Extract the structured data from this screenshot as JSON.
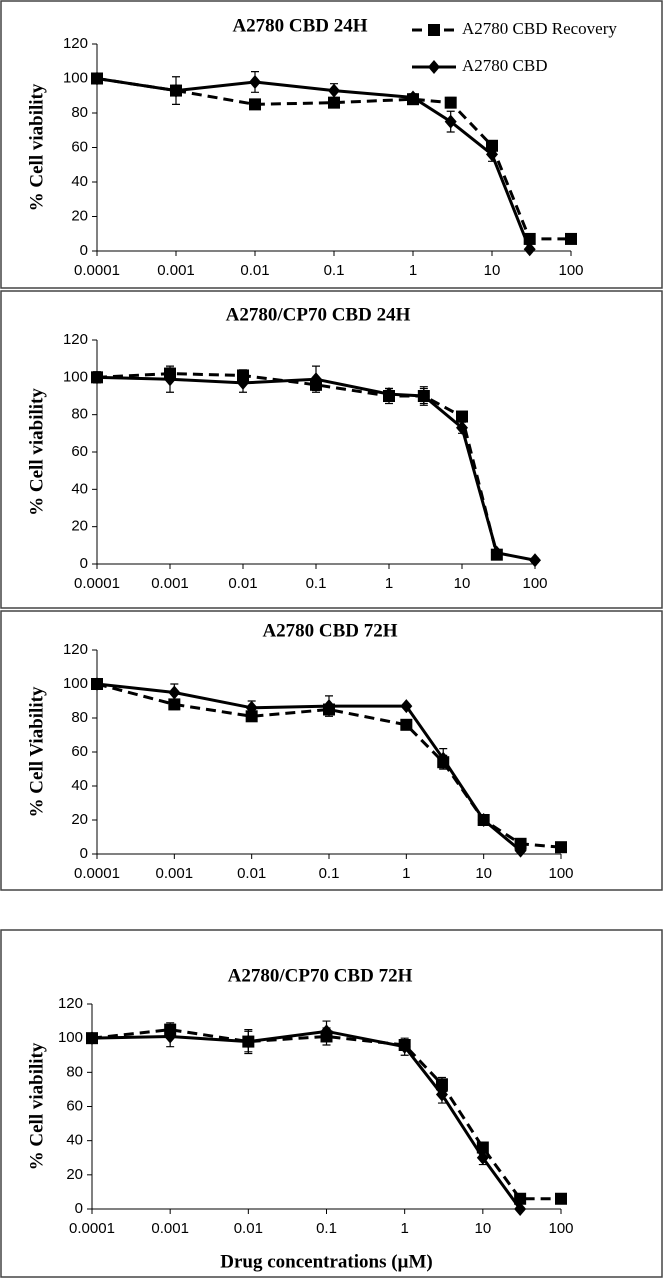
{
  "chart_data": [
    {
      "type": "line",
      "title": "A2780 CBD 24H",
      "y_label": "% Cell viability",
      "xscale": "log",
      "x": [
        0.0001,
        0.001,
        0.01,
        0.1,
        1,
        3,
        10,
        30,
        100
      ],
      "xlim": [
        0.0001,
        100
      ],
      "xticks": [
        0.0001,
        0.001,
        0.01,
        0.1,
        1,
        10,
        100
      ],
      "ylim": [
        0,
        120
      ],
      "yticks": [
        0,
        20,
        40,
        60,
        80,
        100,
        120
      ],
      "legend": "upper right",
      "series": [
        {
          "name": "A2780 CBD Recovery",
          "color": "#000000",
          "style": "dashed",
          "marker": "square",
          "values": [
            100,
            93,
            85,
            86,
            88,
            86,
            61,
            7,
            7
          ],
          "errors": [
            2,
            3,
            2,
            2,
            3,
            3,
            3,
            2,
            2
          ]
        },
        {
          "name": "A2780 CBD",
          "color": "#000000",
          "style": "solid",
          "marker": "diamond",
          "values": [
            100,
            93,
            98,
            93,
            89,
            75,
            56,
            1,
            null
          ],
          "errors": [
            2,
            8,
            6,
            4,
            2,
            6,
            4,
            1,
            null
          ]
        }
      ]
    },
    {
      "type": "line",
      "title": "A2780/CP70 CBD 24H",
      "y_label": "% Cell viability",
      "xscale": "log",
      "x": [
        0.0001,
        0.001,
        0.01,
        0.1,
        1,
        3,
        10,
        30,
        100
      ],
      "xlim": [
        0.0001,
        100
      ],
      "xticks": [
        0.0001,
        0.001,
        0.01,
        0.1,
        1,
        10,
        100
      ],
      "ylim": [
        0,
        120
      ],
      "yticks": [
        0,
        20,
        40,
        60,
        80,
        100,
        120
      ],
      "series": [
        {
          "color": "#000000",
          "style": "dashed",
          "marker": "square",
          "values": [
            100,
            102,
            101,
            96,
            90,
            90,
            79,
            5,
            null
          ],
          "errors": [
            2,
            3,
            3,
            3,
            4,
            4,
            2,
            2,
            null
          ]
        },
        {
          "color": "#000000",
          "style": "solid",
          "marker": "diamond",
          "values": [
            100,
            99,
            97,
            99,
            91,
            90,
            73,
            6,
            2
          ],
          "errors": [
            3,
            7,
            5,
            7,
            3,
            5,
            3,
            1,
            1
          ]
        }
      ]
    },
    {
      "type": "line",
      "title": "A2780 CBD 72H",
      "y_label": "% Cell Viability",
      "xscale": "log",
      "x": [
        0.0001,
        0.001,
        0.01,
        0.1,
        1,
        3,
        10,
        30,
        100
      ],
      "xlim": [
        0.0001,
        100
      ],
      "xticks": [
        0.0001,
        0.001,
        0.01,
        0.1,
        1,
        10,
        100
      ],
      "ylim": [
        0,
        120
      ],
      "yticks": [
        0,
        20,
        40,
        60,
        80,
        100,
        120
      ],
      "series": [
        {
          "color": "#000000",
          "style": "dashed",
          "marker": "square",
          "values": [
            100,
            88,
            81,
            85,
            76,
            54,
            20,
            6,
            4
          ],
          "errors": [
            2,
            3,
            3,
            3,
            3,
            4,
            2,
            1,
            1
          ]
        },
        {
          "color": "#000000",
          "style": "solid",
          "marker": "diamond",
          "values": [
            100,
            95,
            86,
            87,
            87,
            56,
            20,
            2,
            null
          ],
          "errors": [
            2,
            5,
            4,
            6,
            1,
            6,
            2,
            1,
            null
          ]
        }
      ]
    },
    {
      "type": "line",
      "title": "A2780/CP70 CBD 72H",
      "y_label": "% Cell viability",
      "x_label": "Drug concentrations (µM)",
      "xscale": "log",
      "x": [
        0.0001,
        0.001,
        0.01,
        0.1,
        1,
        3,
        10,
        30,
        100
      ],
      "xlim": [
        0.0001,
        100
      ],
      "xticks": [
        0.0001,
        0.001,
        0.01,
        0.1,
        1,
        10,
        100
      ],
      "ylim": [
        0,
        120
      ],
      "yticks": [
        0,
        20,
        40,
        60,
        80,
        100,
        120
      ],
      "series": [
        {
          "color": "#000000",
          "style": "dashed",
          "marker": "square",
          "values": [
            100,
            105,
            98,
            101,
            96,
            73,
            36,
            6,
            6
          ],
          "errors": [
            2,
            4,
            6,
            5,
            3,
            4,
            3,
            2,
            1
          ]
        },
        {
          "color": "#000000",
          "style": "solid",
          "marker": "diamond",
          "values": [
            100,
            101,
            98,
            104,
            95,
            67,
            30,
            0,
            null
          ],
          "errors": [
            2,
            6,
            7,
            6,
            5,
            5,
            4,
            1,
            null
          ]
        }
      ]
    }
  ]
}
